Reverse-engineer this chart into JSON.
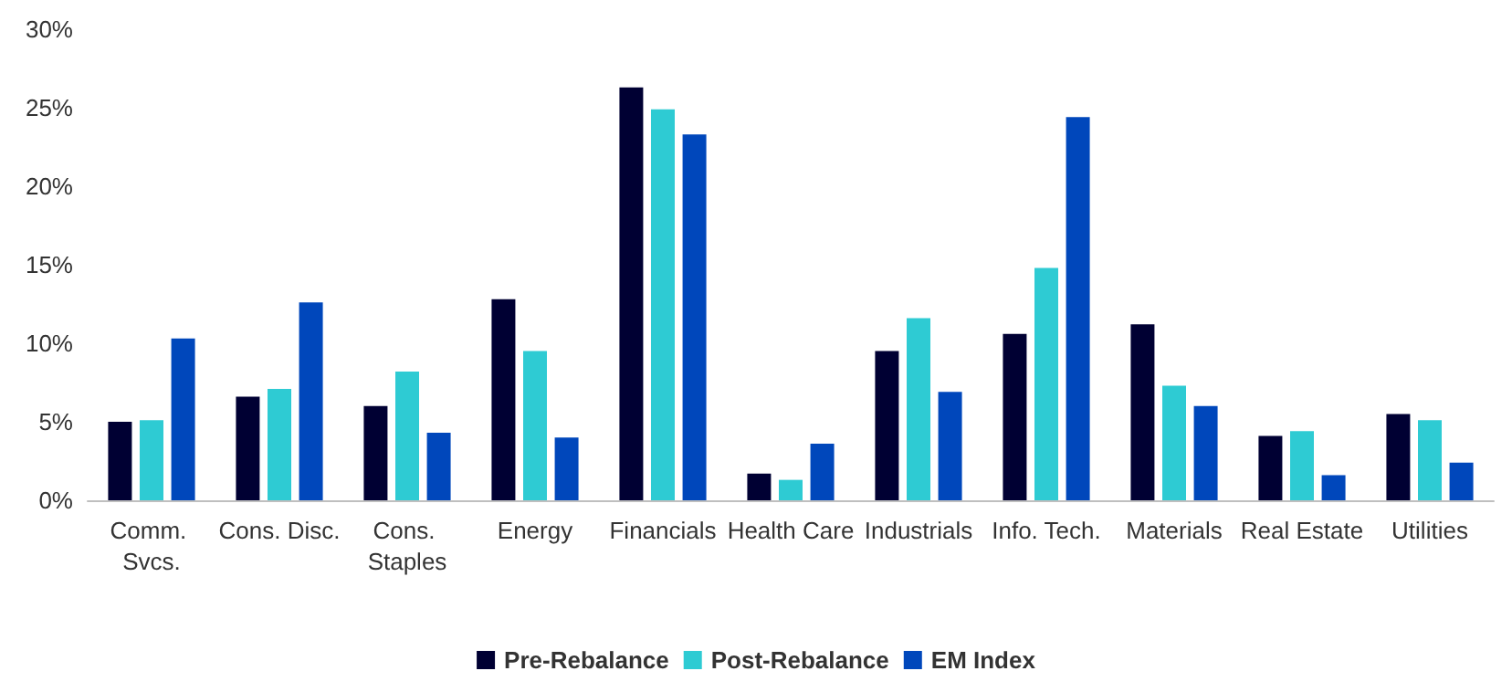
{
  "chart_data": {
    "type": "bar",
    "categories": [
      "Comm. Svcs.",
      "Cons. Disc.",
      "Cons. Staples",
      "Energy",
      "Financials",
      "Health Care",
      "Industrials",
      "Info. Tech.",
      "Materials",
      "Real Estate",
      "Utilities"
    ],
    "series": [
      {
        "name": "Pre-Rebalance",
        "color": "#000033",
        "values": [
          5.0,
          6.6,
          6.0,
          12.8,
          26.3,
          1.7,
          9.5,
          10.6,
          11.2,
          4.1,
          5.5
        ]
      },
      {
        "name": "Post-Rebalance",
        "color": "#2ecbd3",
        "values": [
          5.1,
          7.1,
          8.2,
          9.5,
          24.9,
          1.3,
          11.6,
          14.8,
          7.3,
          4.4,
          5.1
        ]
      },
      {
        "name": "EM Index",
        "color": "#0047bb",
        "values": [
          10.3,
          12.6,
          4.3,
          4.0,
          23.3,
          3.6,
          6.9,
          24.4,
          6.0,
          1.6,
          2.4
        ]
      }
    ],
    "ylim": [
      0,
      30
    ],
    "yticks": [
      {
        "value": 0,
        "label": "0%"
      },
      {
        "value": 5,
        "label": "5%"
      },
      {
        "value": 10,
        "label": "10%"
      },
      {
        "value": 15,
        "label": "15%"
      },
      {
        "value": 20,
        "label": "20%"
      },
      {
        "value": 25,
        "label": "25%"
      },
      {
        "value": 30,
        "label": "30%"
      }
    ],
    "grid": false,
    "legend": "bottom"
  }
}
